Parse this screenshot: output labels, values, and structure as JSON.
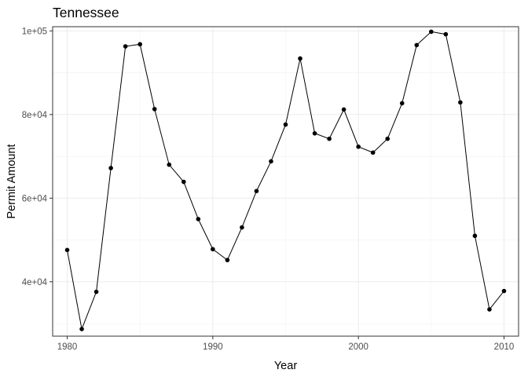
{
  "chart_data": {
    "type": "line",
    "title": "Tennessee",
    "xlabel": "Year",
    "ylabel": "Permit Amount",
    "xlim": [
      1979,
      2011
    ],
    "ylim": [
      27000,
      101000
    ],
    "x_ticks": [
      1980,
      1990,
      2000,
      2010
    ],
    "x_tick_labels": [
      "1980",
      "1990",
      "2000",
      "2010"
    ],
    "y_ticks": [
      40000,
      60000,
      80000,
      100000
    ],
    "y_tick_labels": [
      "4e+04",
      "6e+04",
      "8e+04",
      "1e+05"
    ],
    "grid": true,
    "legend": "none",
    "series": [
      {
        "x": [
          1980,
          1981,
          1982,
          1983,
          1984,
          1985,
          1986,
          1987,
          1988,
          1989,
          1990,
          1991,
          1992,
          1993,
          1994,
          1995,
          1996,
          1997,
          1998,
          1999,
          2000,
          2001,
          2002,
          2003,
          2004,
          2005,
          2006,
          2007,
          2008,
          2009,
          2010
        ],
        "values": [
          47600,
          28700,
          37600,
          67200,
          96300,
          96800,
          81300,
          68000,
          63900,
          55000,
          47800,
          45200,
          53000,
          61700,
          68800,
          77600,
          93400,
          75500,
          74200,
          81200,
          72300,
          70900,
          74200,
          82700,
          96600,
          99800,
          99200,
          82900,
          51000,
          33400,
          37800
        ]
      }
    ],
    "colors": {
      "line": "#000000",
      "point": "#000000",
      "grid": "#ebebeb",
      "border": "#333333",
      "tick_text": "#4d4d4d"
    }
  }
}
